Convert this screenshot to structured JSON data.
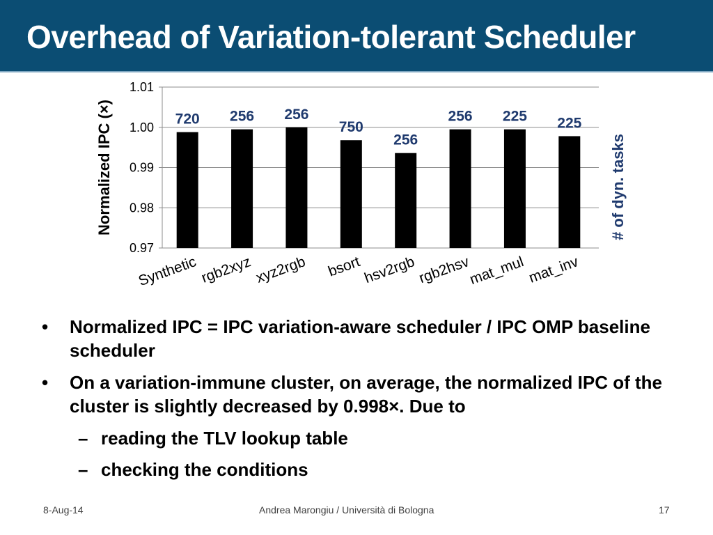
{
  "slide": {
    "title": "Overhead of Variation-tolerant Scheduler",
    "bullets": [
      "Normalized IPC = IPC variation-aware scheduler / IPC OMP baseline scheduler",
      "On a variation-immune cluster, on average, the normalized IPC of the cluster is slightly decreased by 0.998×. Due to"
    ],
    "sub_bullets": [
      "reading the TLV lookup table",
      "checking the conditions"
    ],
    "footer": {
      "date": "8-Aug-14",
      "author": "Andrea Marongiu / Università di Bologna",
      "page": "17"
    }
  },
  "chart_data": {
    "type": "bar",
    "categories": [
      "Synthetic",
      "rgb2xyz",
      "xyz2rgb",
      "bsort",
      "hsv2rgb",
      "rgb2hsv",
      "mat_mul",
      "mat_inv"
    ],
    "series": [
      {
        "values": [
          0.9988,
          0.9995,
          1.0,
          0.9968,
          0.9936,
          0.9995,
          0.9995,
          0.9978
        ]
      }
    ],
    "annotations": [
      "720",
      "256",
      "256",
      "750",
      "256",
      "256",
      "225",
      "225"
    ],
    "ylabel": "Normalized IPC (×)",
    "y2label": "# of dyn. tasks",
    "ylim": [
      0.97,
      1.01
    ],
    "yticks": [
      "0.97",
      "0.98",
      "0.99",
      "1.00",
      "1.01"
    ],
    "grid": true,
    "bar_color": "#000000",
    "annotation_color": "#1f3a6e",
    "y2label_color": "#1f3a6e"
  }
}
